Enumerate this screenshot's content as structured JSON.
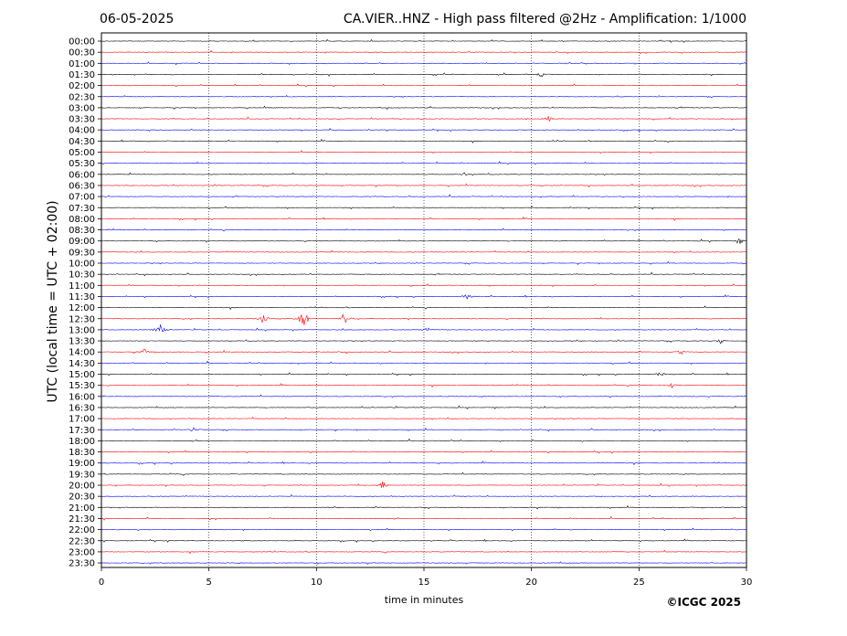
{
  "header": {
    "date": "06-05-2025",
    "title": "CA.VIER..HNZ - High pass filtered @2Hz - Amplification: 1/1000"
  },
  "footer": {
    "copyright": "©ICGC 2025"
  },
  "chart_data": {
    "type": "line",
    "xlabel": "time in minutes",
    "ylabel": "UTC (local time = UTC + 02:00)",
    "xlim": [
      0,
      30
    ],
    "x_ticks": [
      0,
      5,
      10,
      15,
      20,
      25,
      30
    ],
    "x_gridlines": [
      5,
      10,
      15,
      20,
      25
    ],
    "grid": "vertical dotted at every 5 minutes",
    "row_labels": [
      "00:00",
      "00:30",
      "01:00",
      "01:30",
      "02:00",
      "02:30",
      "03:00",
      "03:30",
      "04:00",
      "04:30",
      "05:00",
      "05:30",
      "06:00",
      "06:30",
      "07:00",
      "07:30",
      "08:00",
      "08:30",
      "09:00",
      "09:30",
      "10:00",
      "10:30",
      "11:00",
      "11:30",
      "12:00",
      "12:30",
      "13:00",
      "13:30",
      "14:00",
      "14:30",
      "15:00",
      "15:30",
      "16:00",
      "16:30",
      "17:00",
      "17:30",
      "18:00",
      "18:30",
      "19:00",
      "19:30",
      "20:00",
      "20:30",
      "21:00",
      "21:30",
      "22:00",
      "22:30",
      "23:00",
      "23:30"
    ],
    "trace_colors": [
      "#000000",
      "#ff0000",
      "#0000ff"
    ],
    "color_cycle_note": "",
    "events": [
      {
        "row": "12:30",
        "minute": 7.5,
        "amplitude": 0.5
      },
      {
        "row": "12:30",
        "minute": 9.4,
        "amplitude": 1.0
      },
      {
        "row": "12:30",
        "minute": 11.3,
        "amplitude": 0.55
      },
      {
        "row": "13:00",
        "minute": 2.7,
        "amplitude": 0.6
      },
      {
        "row": "13:00",
        "minute": 15.1,
        "amplitude": 0.2
      },
      {
        "row": "13:30",
        "minute": 28.8,
        "amplitude": 0.2
      },
      {
        "row": "14:00",
        "minute": 2.0,
        "amplitude": 0.25
      },
      {
        "row": "14:00",
        "minute": 27.0,
        "amplitude": 0.2
      },
      {
        "row": "15:00",
        "minute": 26.0,
        "amplitude": 0.2
      },
      {
        "row": "15:30",
        "minute": 26.5,
        "amplitude": 0.2
      },
      {
        "row": "17:30",
        "minute": 4.3,
        "amplitude": 0.2
      },
      {
        "row": "20:00",
        "minute": 13.1,
        "amplitude": 0.3
      },
      {
        "row": "01:30",
        "minute": 20.4,
        "amplitude": 0.2
      },
      {
        "row": "03:30",
        "minute": 20.8,
        "amplitude": 0.2
      },
      {
        "row": "06:00",
        "minute": 16.9,
        "amplitude": 0.2
      },
      {
        "row": "09:00",
        "minute": 29.7,
        "amplitude": 0.2
      },
      {
        "row": "11:30",
        "minute": 17.0,
        "amplitude": 0.2
      }
    ]
  }
}
